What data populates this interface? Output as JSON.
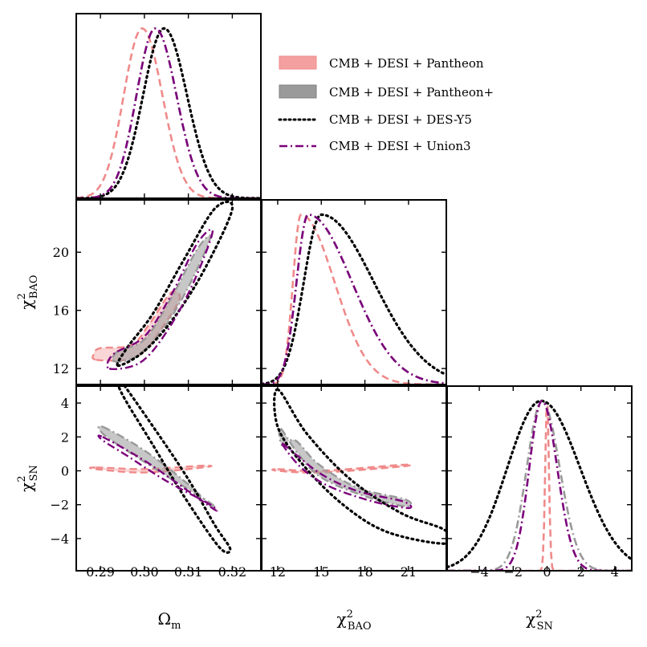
{
  "chart_data": {
    "type": "corner",
    "parameters": [
      "Ωm",
      "χ²BAO",
      "χ²SN"
    ],
    "axis_labels": {
      "omega": {
        "main": "Ω",
        "sub": "m"
      },
      "bao": {
        "main": "χ",
        "sup": "2",
        "sub": "BAO"
      },
      "sn": {
        "main": "χ",
        "sup": "2",
        "sub": "SN"
      }
    },
    "ranges": {
      "omega": [
        0.2845,
        0.3265
      ],
      "bao": [
        10.9,
        23.6
      ],
      "sn": [
        -5.9,
        5.0
      ]
    },
    "ticks": {
      "omega": {
        "values": [
          0.29,
          0.3,
          0.31,
          0.32
        ],
        "labels": [
          "0.29",
          "0.30",
          "0.31",
          "0.32"
        ]
      },
      "bao_x": {
        "values": [
          12,
          15,
          18,
          21
        ],
        "labels": [
          "12",
          "15",
          "18",
          "21"
        ]
      },
      "bao_y": {
        "values": [
          12,
          16,
          20
        ],
        "labels": [
          "12",
          "16",
          "20"
        ]
      },
      "sn_x": {
        "values": [
          -4,
          -2,
          0,
          2,
          4
        ],
        "labels": [
          "−4",
          "−2",
          "0",
          "2",
          "4"
        ]
      },
      "sn_y": {
        "values": [
          -4,
          -2,
          0,
          2,
          4
        ],
        "labels": [
          "−4",
          "−2",
          "0",
          "2",
          "4"
        ]
      }
    },
    "legend": {
      "position": "upper-right",
      "entries": [
        "CMB + DESI + Pantheon",
        "CMB + DESI + Pantheon+",
        "CMB + DESI + DES-Y5",
        "CMB + DESI + Union3"
      ]
    },
    "series": [
      {
        "name": "CMB + DESI + Pantheon",
        "color": "#f08a8a",
        "style": "dashed",
        "fill": true,
        "omega": {
          "mean": 0.2995,
          "sd_left": 0.0042,
          "sd_right": 0.0046
        },
        "bao": {
          "mean": 13.6,
          "sd_left": 0.55,
          "sd_right": 2.3
        },
        "sn": {
          "mean": 0.0,
          "sd_left": 0.11,
          "sd_right": 0.11
        },
        "contour_omega_bao": [
          [
            0.289,
            12.6
          ],
          [
            0.296,
            12.6
          ],
          [
            0.3,
            13.2
          ],
          [
            0.304,
            14.8
          ],
          [
            0.308,
            16.8
          ],
          [
            0.306,
            17.2
          ],
          [
            0.301,
            15.0
          ],
          [
            0.297,
            13.6
          ],
          [
            0.29,
            13.4
          ],
          [
            0.2885,
            13.0
          ]
        ],
        "contour_omega_sn": [
          [
            0.289,
            0.2
          ],
          [
            0.3,
            0.1
          ],
          [
            0.313,
            0.3
          ],
          [
            0.314,
            0.22
          ],
          [
            0.3,
            -0.1
          ],
          [
            0.289,
            0.1
          ]
        ],
        "contour_bao_sn": [
          [
            12.0,
            0.1
          ],
          [
            15.0,
            0.0
          ],
          [
            20.5,
            0.35
          ],
          [
            20.5,
            0.25
          ],
          [
            15.0,
            -0.1
          ],
          [
            12.0,
            0.0
          ]
        ]
      },
      {
        "name": "CMB + DESI + Pantheon+",
        "color": "#999999",
        "style": "dashdot",
        "fill": true,
        "omega": {
          "mean": 0.3025,
          "sd_left": 0.0043,
          "sd_right": 0.0048
        },
        "bao": {
          "mean": 14.1,
          "sd_left": 0.8,
          "sd_right": 3.0
        },
        "sn": {
          "mean": -0.3,
          "sd_left": 0.9,
          "sd_right": 1.05
        },
        "contour_omega_bao": [
          [
            0.293,
            12.5
          ],
          [
            0.298,
            12.8
          ],
          [
            0.304,
            14.6
          ],
          [
            0.31,
            17.6
          ],
          [
            0.315,
            21.0
          ],
          [
            0.312,
            20.2
          ],
          [
            0.306,
            16.8
          ],
          [
            0.3,
            14.0
          ],
          [
            0.294,
            13.2
          ]
        ],
        "contour_omega_sn": [
          [
            0.2905,
            2.6
          ],
          [
            0.3,
            1.2
          ],
          [
            0.31,
            -0.8
          ],
          [
            0.3155,
            -2.2
          ],
          [
            0.315,
            -1.9
          ],
          [
            0.305,
            -0.3
          ],
          [
            0.296,
            1.2
          ],
          [
            0.2905,
            2.2
          ]
        ],
        "contour_bao_sn": [
          [
            12.2,
            2.5
          ],
          [
            13.4,
            1.0
          ],
          [
            15.0,
            -0.4
          ],
          [
            18.0,
            -1.5
          ],
          [
            20.8,
            -2.1
          ],
          [
            20.8,
            -1.7
          ],
          [
            17.5,
            -1.0
          ],
          [
            14.8,
            0.4
          ],
          [
            13.2,
            1.8
          ],
          [
            12.3,
            1.5
          ]
        ]
      },
      {
        "name": "CMB + DESI + DES-Y5",
        "color": "#000000",
        "style": "dotted",
        "fill": false,
        "omega": {
          "mean": 0.3045,
          "sd_left": 0.0048,
          "sd_right": 0.0052
        },
        "bao": {
          "mean": 15.0,
          "sd_left": 1.2,
          "sd_right": 3.6
        },
        "sn": {
          "mean": -0.35,
          "sd_left": 2.0,
          "sd_right": 2.3
        },
        "contour_omega_bao": [
          [
            0.294,
            12.2
          ],
          [
            0.3,
            13.2
          ],
          [
            0.307,
            15.6
          ],
          [
            0.314,
            19.0
          ],
          [
            0.32,
            23.0
          ],
          [
            0.316,
            23.0
          ],
          [
            0.309,
            19.5
          ],
          [
            0.302,
            15.8
          ],
          [
            0.296,
            13.4
          ]
        ],
        "contour_omega_sn": [
          [
            0.294,
            5.5
          ],
          [
            0.302,
            2.6
          ],
          [
            0.31,
            -0.5
          ],
          [
            0.316,
            -3.2
          ],
          [
            0.3195,
            -4.6
          ],
          [
            0.317,
            -4.5
          ],
          [
            0.309,
            -1.5
          ],
          [
            0.302,
            1.5
          ],
          [
            0.295,
            4.5
          ]
        ],
        "contour_bao_sn": [
          [
            12.0,
            4.8
          ],
          [
            14.0,
            2.2
          ],
          [
            17.0,
            -0.5
          ],
          [
            20.5,
            -2.5
          ],
          [
            23.5,
            -3.5
          ],
          [
            23.5,
            -4.3
          ],
          [
            19.5,
            -3.6
          ],
          [
            16.5,
            -2.0
          ],
          [
            13.8,
            0.3
          ],
          [
            12.0,
            2.6
          ]
        ]
      },
      {
        "name": "CMB + DESI + Union3",
        "color": "#7b007b",
        "style": "dashdot",
        "fill": false,
        "omega": {
          "mean": 0.3025,
          "sd_left": 0.0043,
          "sd_right": 0.0048
        },
        "bao": {
          "mean": 14.1,
          "sd_left": 0.8,
          "sd_right": 3.0
        },
        "sn": {
          "mean": -0.3,
          "sd_left": 0.75,
          "sd_right": 0.9
        },
        "contour_omega_bao": [
          [
            0.292,
            12.0
          ],
          [
            0.299,
            12.4
          ],
          [
            0.305,
            14.5
          ],
          [
            0.311,
            17.8
          ],
          [
            0.3155,
            21.4
          ],
          [
            0.312,
            20.6
          ],
          [
            0.306,
            17.0
          ],
          [
            0.3,
            14.2
          ],
          [
            0.293,
            13.0
          ]
        ],
        "contour_omega_sn": [
          [
            0.2905,
            2.0
          ],
          [
            0.3,
            0.6
          ],
          [
            0.31,
            -1.2
          ],
          [
            0.316,
            -2.3
          ],
          [
            0.315,
            -2.0
          ],
          [
            0.305,
            -0.6
          ],
          [
            0.296,
            0.9
          ],
          [
            0.2905,
            1.8
          ]
        ],
        "contour_bao_sn": [
          [
            12.3,
            1.6
          ],
          [
            13.6,
            0.2
          ],
          [
            15.5,
            -0.9
          ],
          [
            18.5,
            -1.8
          ],
          [
            21.0,
            -2.2
          ],
          [
            20.6,
            -1.8
          ],
          [
            17.5,
            -1.2
          ],
          [
            15.0,
            -0.2
          ],
          [
            13.2,
            1.0
          ]
        ]
      }
    ]
  }
}
